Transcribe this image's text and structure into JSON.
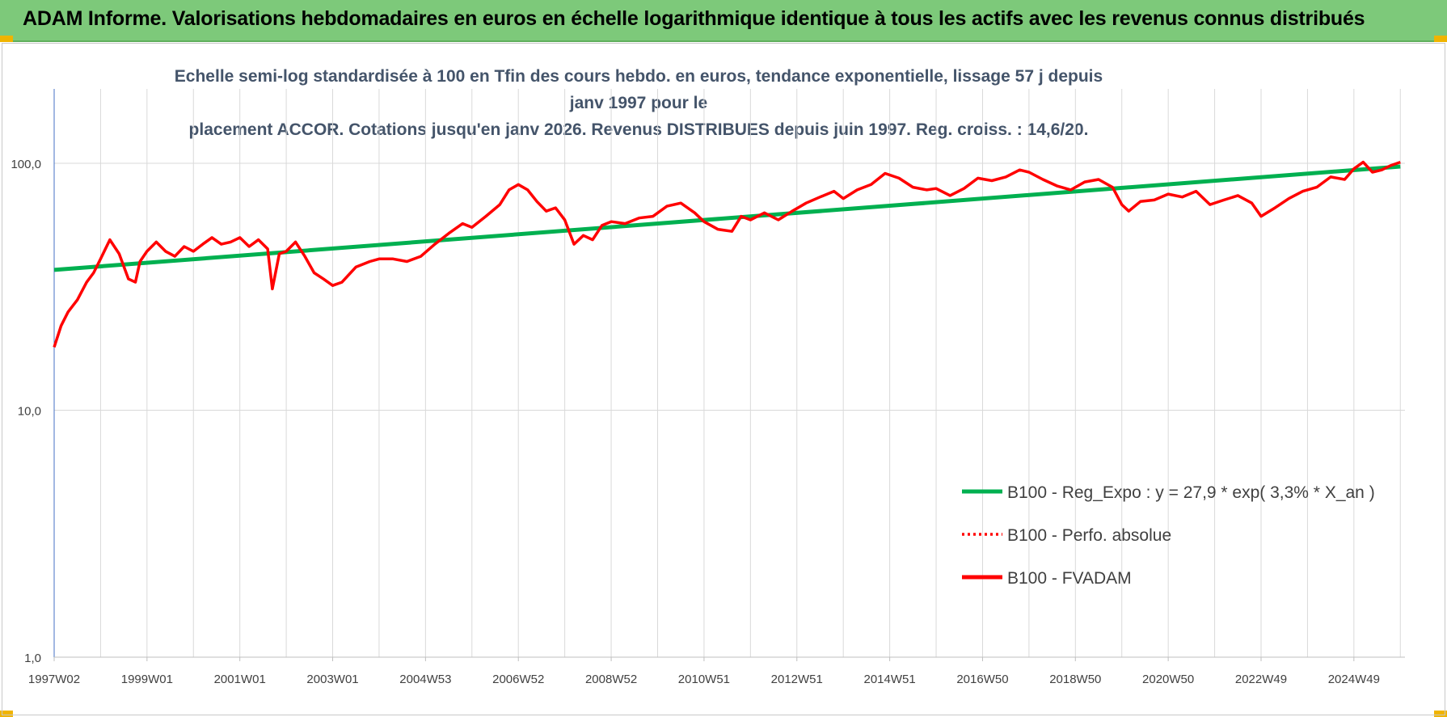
{
  "header": {
    "title": "ADAM Informe. Valorisations hebdomadaires en euros en échelle logarithmique identique à tous les actifs avec les revenus connus distribués"
  },
  "colors": {
    "banner": "#7dc97a",
    "regression": "#00b050",
    "fvadam": "#ff0000",
    "perfo": "#ff0000",
    "subtitle": "#44546a"
  },
  "chart_data": {
    "type": "line",
    "title": "Echelle semi-log standardisée à 100 en Tfin des cours hebdo. en euros, tendance exponentielle, lissage 57 j depuis janv 1997 pour le placement ACCOR. Cotations jusqu'en janv 2026. Revenus DISTRIBUES depuis juin 1997. Reg. croiss. : 14,6/20.",
    "title_lines": [
      "Echelle semi-log standardisée à 100 en Tfin des cours hebdo. en euros, tendance exponentielle, lissage 57 j depuis janv 1997 pour le",
      "placement ACCOR. Cotations jusqu'en janv 2026. Revenus DISTRIBUES depuis juin 1997. Reg. croiss. : 14,6/20."
    ],
    "y_scale": "log",
    "ylim": [
      1,
      200
    ],
    "yticks": [
      {
        "value": 100,
        "label": "100,0"
      },
      {
        "value": 10,
        "label": "10,0"
      },
      {
        "value": 1,
        "label": "1,0"
      }
    ],
    "xlim": [
      1997.0,
      2026.1
    ],
    "xticks": [
      {
        "x": 1997.0,
        "label": "1997W02"
      },
      {
        "x": 1999.0,
        "label": "1999W01"
      },
      {
        "x": 2001.0,
        "label": "2001W01"
      },
      {
        "x": 2003.0,
        "label": "2003W01"
      },
      {
        "x": 2005.0,
        "label": "2004W53"
      },
      {
        "x": 2007.0,
        "label": "2006W52"
      },
      {
        "x": 2009.0,
        "label": "2008W52"
      },
      {
        "x": 2011.0,
        "label": "2010W51"
      },
      {
        "x": 2013.0,
        "label": "2012W51"
      },
      {
        "x": 2015.0,
        "label": "2014W51"
      },
      {
        "x": 2017.0,
        "label": "2016W50"
      },
      {
        "x": 2019.0,
        "label": "2018W50"
      },
      {
        "x": 2021.0,
        "label": "2020W50"
      },
      {
        "x": 2023.0,
        "label": "2022W49"
      },
      {
        "x": 2025.0,
        "label": "2024W49"
      }
    ],
    "grid": true,
    "legend_position": "bottom-right",
    "series": [
      {
        "name": "B100 - Reg_Expo : y = 27,9 * exp( 3,3% *  X_an )",
        "style": "solid-green",
        "x": [
          1997.0,
          2026.0
        ],
        "y": [
          37,
          97
        ]
      },
      {
        "name": "B100 - Perfo. absolue",
        "style": "dotted-red",
        "x": [],
        "y": []
      },
      {
        "name": "B100 - FVADAM",
        "style": "solid-red",
        "x": [
          1997.0,
          1997.15,
          1997.3,
          1997.5,
          1997.7,
          1997.85,
          1998.0,
          1998.2,
          1998.4,
          1998.6,
          1998.75,
          1998.85,
          1999.0,
          1999.2,
          1999.4,
          1999.6,
          1999.8,
          2000.0,
          2000.2,
          2000.4,
          2000.6,
          2000.8,
          2001.0,
          2001.2,
          2001.4,
          2001.6,
          2001.7,
          2001.85,
          2002.0,
          2002.2,
          2002.4,
          2002.6,
          2002.8,
          2003.0,
          2003.2,
          2003.5,
          2003.8,
          2004.0,
          2004.3,
          2004.6,
          2004.9,
          2005.2,
          2005.5,
          2005.8,
          2006.0,
          2006.3,
          2006.6,
          2006.8,
          2007.0,
          2007.2,
          2007.4,
          2007.6,
          2007.8,
          2008.0,
          2008.2,
          2008.4,
          2008.6,
          2008.8,
          2009.0,
          2009.3,
          2009.6,
          2009.9,
          2010.2,
          2010.5,
          2010.8,
          2011.0,
          2011.3,
          2011.6,
          2011.8,
          2012.0,
          2012.3,
          2012.6,
          2012.9,
          2013.2,
          2013.5,
          2013.8,
          2014.0,
          2014.3,
          2014.6,
          2014.9,
          2015.2,
          2015.5,
          2015.8,
          2016.0,
          2016.3,
          2016.6,
          2016.9,
          2017.2,
          2017.5,
          2017.8,
          2018.0,
          2018.3,
          2018.6,
          2018.9,
          2019.2,
          2019.5,
          2019.8,
          2020.0,
          2020.15,
          2020.4,
          2020.7,
          2021.0,
          2021.3,
          2021.6,
          2021.9,
          2022.2,
          2022.5,
          2022.8,
          2023.0,
          2023.3,
          2023.6,
          2023.9,
          2024.2,
          2024.5,
          2024.8,
          2025.0,
          2025.2,
          2025.4,
          2025.6,
          2025.8,
          2026.0
        ],
        "y": [
          18,
          22,
          25,
          28,
          33,
          36,
          41,
          49,
          43,
          34,
          33,
          40,
          44,
          48,
          44,
          42,
          46,
          44,
          47,
          50,
          47,
          48,
          50,
          46,
          49,
          45,
          31,
          43,
          44,
          48,
          42,
          36,
          34,
          32,
          33,
          38,
          40,
          41,
          41,
          40,
          42,
          47,
          52,
          57,
          55,
          61,
          68,
          78,
          82,
          78,
          70,
          64,
          66,
          59,
          47,
          51,
          49,
          56,
          58,
          57,
          60,
          61,
          67,
          69,
          63,
          58,
          54,
          53,
          61,
          59,
          63,
          59,
          64,
          69,
          73,
          77,
          72,
          78,
          82,
          91,
          87,
          80,
          78,
          79,
          74,
          79,
          87,
          85,
          88,
          94,
          92,
          86,
          81,
          78,
          84,
          86,
          80,
          68,
          64,
          70,
          71,
          75,
          73,
          77,
          68,
          71,
          74,
          69,
          61,
          66,
          72,
          77,
          80,
          88,
          86,
          95,
          101,
          92,
          94,
          98,
          101
        ]
      }
    ]
  },
  "legend": {
    "items": [
      "B100 - Reg_Expo : y = 27,9 * exp( 3,3% *  X_an )",
      "B100 - Perfo. absolue",
      "B100 - FVADAM"
    ]
  }
}
